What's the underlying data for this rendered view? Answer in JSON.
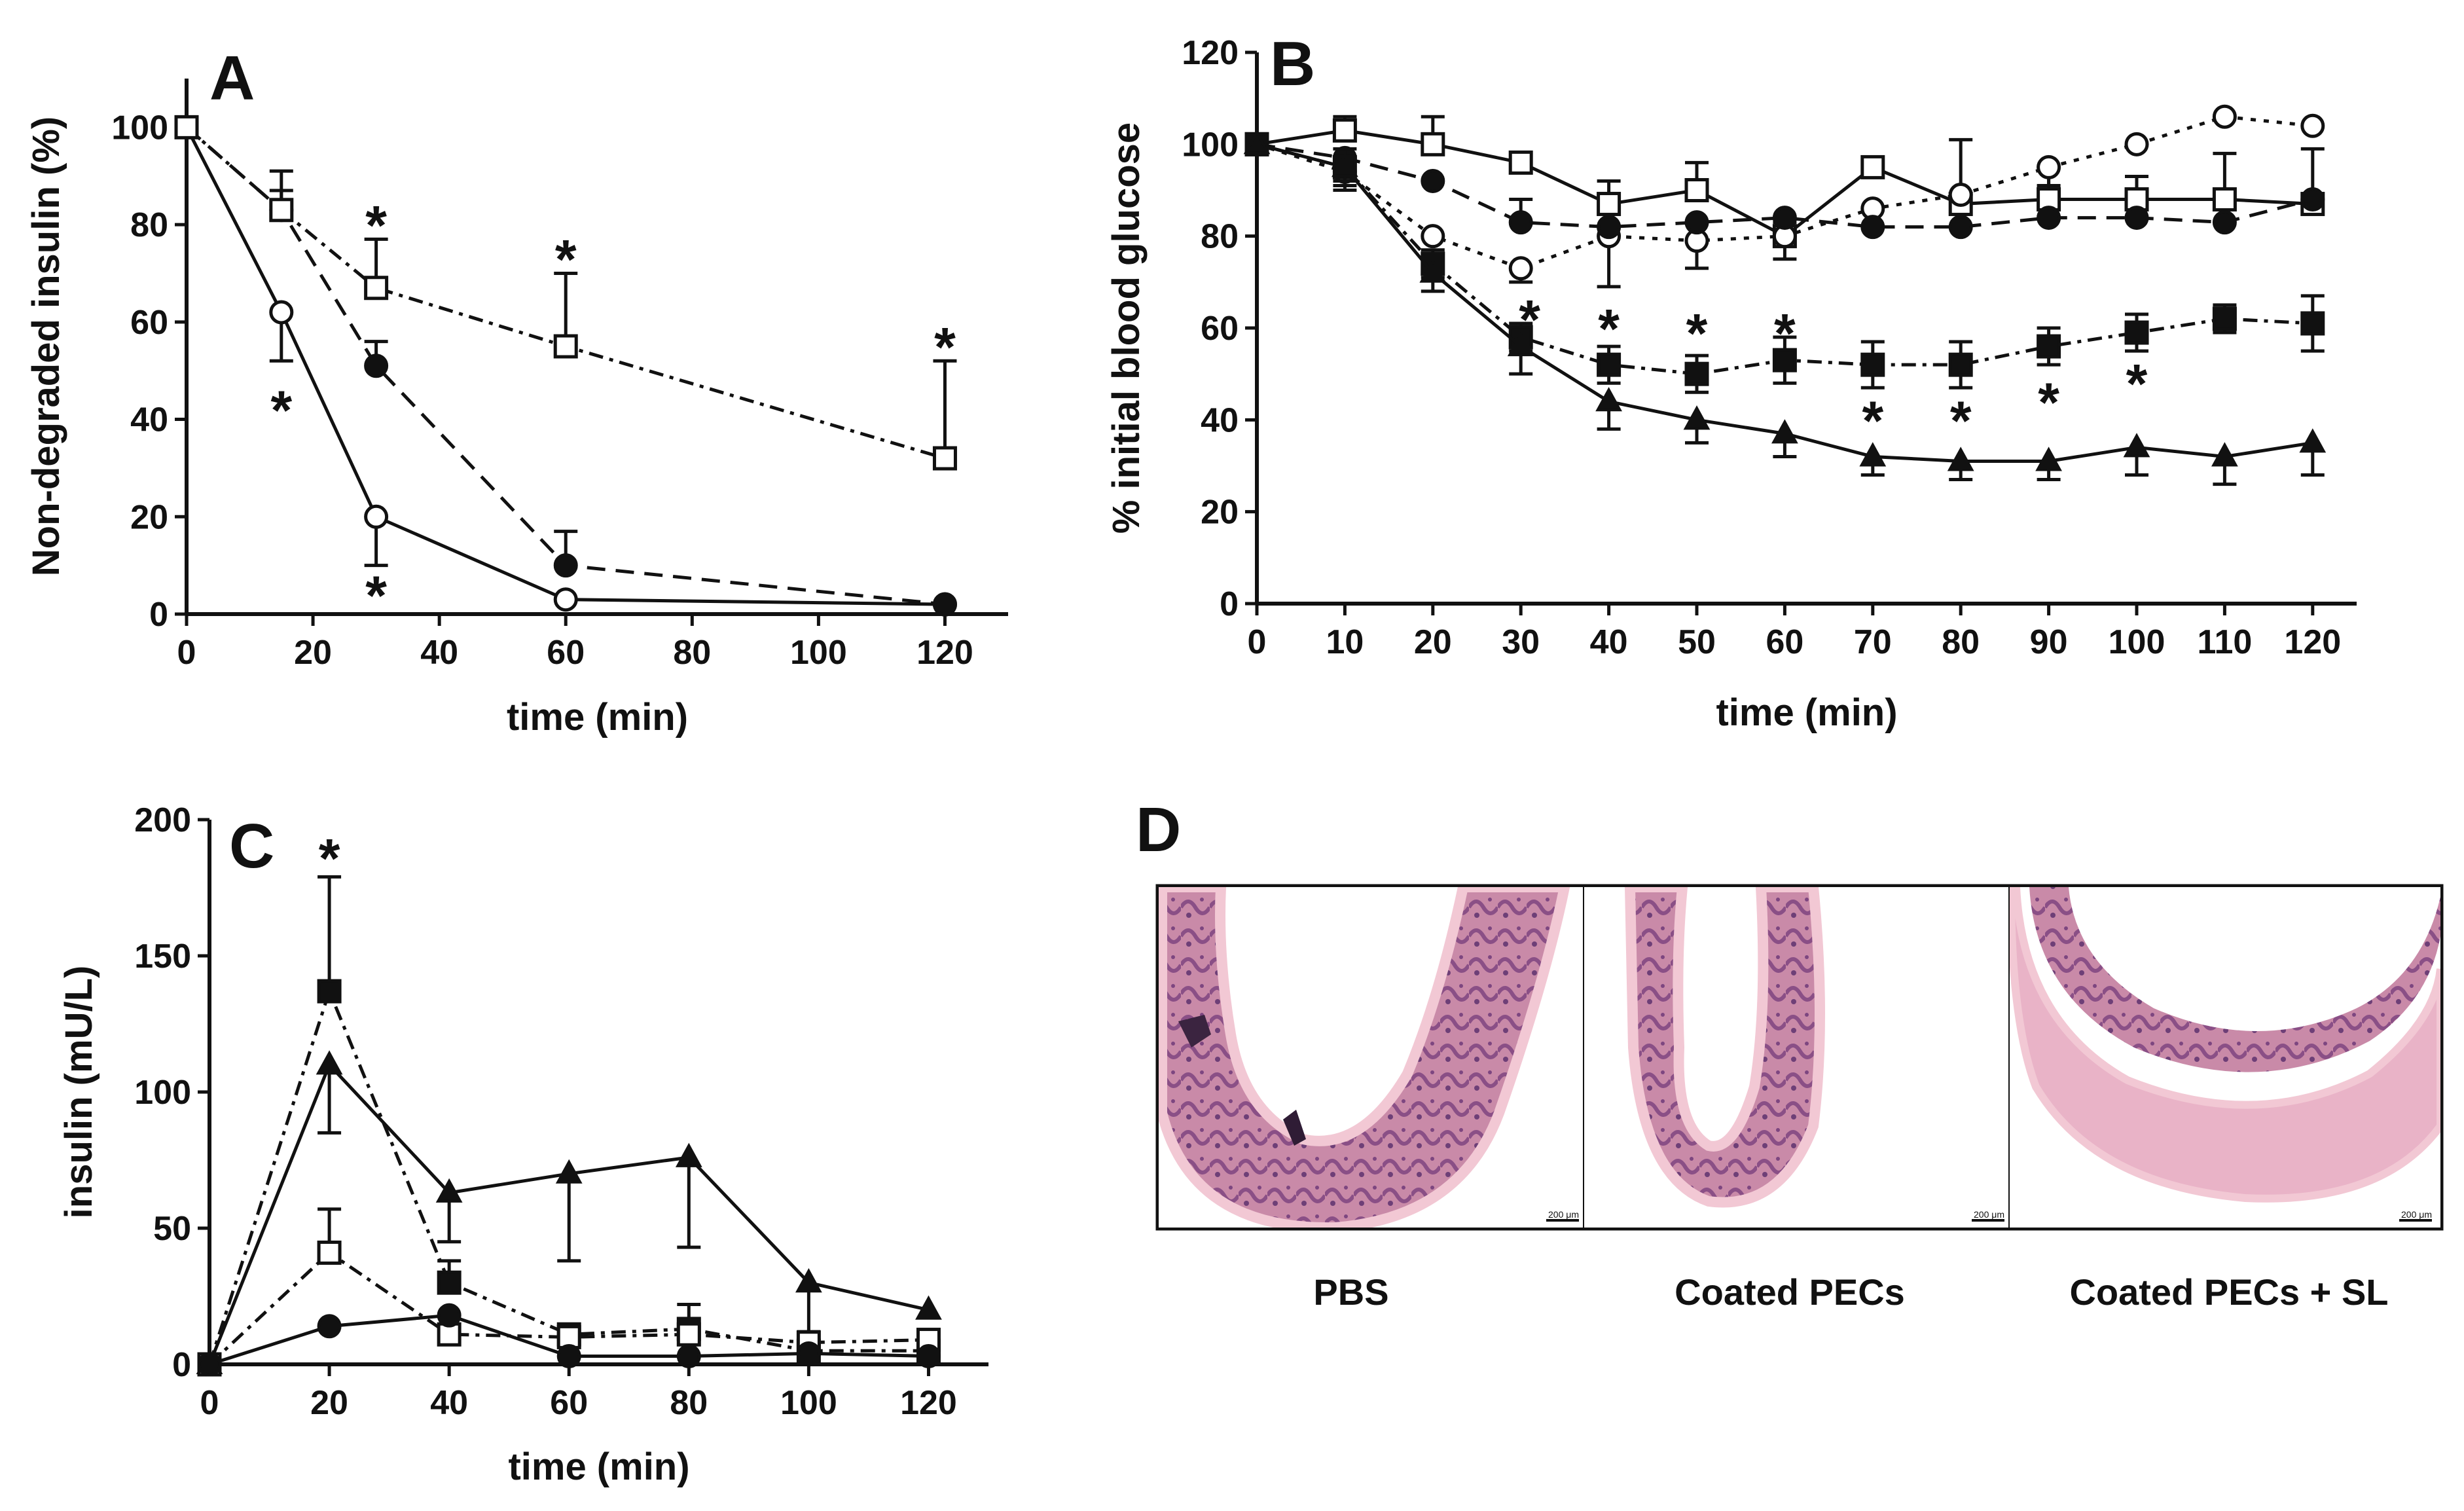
{
  "panel_labels": {
    "A": "A",
    "B": "B",
    "C": "C",
    "D": "D"
  },
  "colors": {
    "ink": "#111111",
    "axis": "#111111",
    "panel_letter_dark": "#2a2a3a",
    "tissue_pink": "#e0a3b8",
    "tissue_purple": "#9a5a8f",
    "tissue_edge": "#f2c8d4"
  },
  "chart_data": [
    {
      "id": "A",
      "type": "line",
      "xlabel": "time (min)",
      "ylabel": "Non-degraded insulin (%)",
      "xlim": [
        0,
        130
      ],
      "ylim": [
        0,
        110
      ],
      "xticks": [
        0,
        20,
        40,
        60,
        80,
        100,
        120
      ],
      "yticks": [
        0,
        20,
        40,
        60,
        80,
        100
      ],
      "series": [
        {
          "name": "open circle",
          "marker": "circle-open",
          "dash": "solid",
          "x": [
            0,
            15,
            30,
            60,
            120
          ],
          "y": [
            100,
            62,
            20,
            3,
            2
          ],
          "err": [
            0,
            10,
            10,
            0,
            0
          ],
          "err_dir": "down"
        },
        {
          "name": "filled circle",
          "marker": "circle-filled",
          "dash": "dashed",
          "x": [
            0,
            15,
            30,
            60,
            120
          ],
          "y": [
            100,
            83,
            51,
            10,
            2
          ],
          "err": [
            0,
            8,
            5,
            7,
            0
          ],
          "err_dir": "up"
        },
        {
          "name": "open square",
          "marker": "square-open",
          "dash": "dashdot",
          "x": [
            0,
            15,
            30,
            60,
            120
          ],
          "y": [
            100,
            83,
            67,
            55,
            32
          ],
          "err": [
            0,
            4,
            10,
            15,
            20
          ],
          "err_dir": "up"
        }
      ],
      "annotations": [
        {
          "text": "*",
          "x": 30,
          "y": 80
        },
        {
          "text": "*",
          "x": 60,
          "y": 73
        },
        {
          "text": "*",
          "x": 120,
          "y": 55
        },
        {
          "text": "*",
          "x": 15,
          "y": 42
        },
        {
          "text": "*",
          "x": 30,
          "y": 4
        }
      ]
    },
    {
      "id": "B",
      "type": "line",
      "xlabel": "time (min)",
      "ylabel": "% initial blood glucose",
      "xlim": [
        0,
        125
      ],
      "ylim": [
        0,
        120
      ],
      "xticks": [
        0,
        10,
        20,
        30,
        40,
        50,
        60,
        70,
        80,
        90,
        100,
        110,
        120
      ],
      "yticks": [
        0,
        20,
        40,
        60,
        80,
        100,
        120
      ],
      "series": [
        {
          "name": "open square",
          "marker": "square-open",
          "dash": "solid",
          "x": [
            0,
            10,
            20,
            30,
            40,
            50,
            60,
            70,
            80,
            90,
            100,
            110,
            120
          ],
          "y": [
            100,
            103,
            100,
            96,
            87,
            90,
            80,
            95,
            87,
            88,
            88,
            88,
            87
          ],
          "err": [
            0,
            3,
            6,
            0,
            5,
            6,
            3,
            2,
            14,
            7,
            5,
            10,
            12
          ],
          "err_dir": "up"
        },
        {
          "name": "open circle",
          "marker": "circle-open",
          "dash": "dotted",
          "x": [
            0,
            10,
            20,
            30,
            40,
            50,
            60,
            70,
            80,
            90,
            100,
            110,
            120
          ],
          "y": [
            100,
            94,
            80,
            73,
            80,
            79,
            80,
            86,
            89,
            95,
            100,
            106,
            104
          ],
          "err": [
            0,
            4,
            0,
            3,
            11,
            6,
            5,
            0,
            0,
            4,
            0,
            0,
            0
          ],
          "err_dir": "down"
        },
        {
          "name": "filled circle",
          "marker": "circle-filled",
          "dash": "dashed",
          "x": [
            0,
            10,
            20,
            30,
            40,
            50,
            60,
            70,
            80,
            90,
            100,
            110,
            120
          ],
          "y": [
            100,
            97,
            92,
            83,
            82,
            83,
            84,
            82,
            82,
            84,
            84,
            83,
            88
          ],
          "err": [
            0,
            0,
            0,
            5,
            0,
            0,
            0,
            0,
            0,
            0,
            0,
            0,
            0
          ],
          "err_dir": "up"
        },
        {
          "name": "filled square",
          "marker": "square-filled",
          "dash": "dashdot",
          "x": [
            0,
            10,
            20,
            30,
            40,
            50,
            60,
            70,
            80,
            90,
            100,
            110,
            120
          ],
          "y": [
            100,
            95,
            74,
            58,
            52,
            50,
            53,
            52,
            52,
            56,
            59,
            62,
            61
          ],
          "err": [
            0,
            4,
            3,
            3,
            4,
            4,
            5,
            5,
            5,
            4,
            4,
            3,
            6
          ],
          "err_dir": "both"
        },
        {
          "name": "filled triangle",
          "marker": "triangle-filled",
          "dash": "solid",
          "x": [
            0,
            10,
            20,
            30,
            40,
            50,
            60,
            70,
            80,
            90,
            100,
            110,
            120
          ],
          "y": [
            100,
            95,
            72,
            56,
            44,
            40,
            37,
            32,
            31,
            31,
            34,
            32,
            35
          ],
          "err": [
            0,
            3,
            4,
            6,
            6,
            5,
            5,
            4,
            4,
            4,
            6,
            6,
            7
          ],
          "err_dir": "down"
        }
      ],
      "annotations": [
        {
          "text": "*",
          "x": 31,
          "y": 62
        },
        {
          "text": "*",
          "x": 40,
          "y": 60
        },
        {
          "text": "*",
          "x": 50,
          "y": 59
        },
        {
          "text": "*",
          "x": 60,
          "y": 59
        },
        {
          "text": "*",
          "x": 70,
          "y": 40
        },
        {
          "text": "*",
          "x": 80,
          "y": 40
        },
        {
          "text": "*",
          "x": 90,
          "y": 44
        },
        {
          "text": "*",
          "x": 100,
          "y": 48
        }
      ]
    },
    {
      "id": "C",
      "type": "line",
      "xlabel": "time (min)",
      "ylabel": "insulin (mU/L)",
      "xlim": [
        0,
        130
      ],
      "ylim": [
        0,
        200
      ],
      "xticks": [
        0,
        20,
        40,
        60,
        80,
        100,
        120
      ],
      "yticks": [
        0,
        50,
        100,
        150,
        200
      ],
      "series": [
        {
          "name": "filled triangle",
          "marker": "triangle-filled",
          "dash": "solid",
          "x": [
            0,
            20,
            40,
            60,
            80,
            100,
            120
          ],
          "y": [
            0,
            110,
            63,
            70,
            76,
            30,
            20
          ],
          "err": [
            0,
            25,
            18,
            32,
            33,
            18,
            0
          ],
          "err_dir": "down"
        },
        {
          "name": "filled square",
          "marker": "square-filled",
          "dash": "dashdot",
          "x": [
            0,
            20,
            40,
            60,
            80,
            100,
            120
          ],
          "y": [
            0,
            137,
            30,
            11,
            13,
            5,
            5
          ],
          "err": [
            0,
            42,
            8,
            0,
            9,
            0,
            0
          ],
          "err_dir": "up"
        },
        {
          "name": "open square",
          "marker": "square-open",
          "dash": "dashdot",
          "x": [
            0,
            20,
            40,
            60,
            80,
            100,
            120
          ],
          "y": [
            0,
            41,
            11,
            10,
            11,
            8,
            9
          ],
          "err": [
            0,
            16,
            0,
            0,
            0,
            0,
            0
          ],
          "err_dir": "up"
        },
        {
          "name": "filled circle",
          "marker": "circle-filled",
          "dash": "solid",
          "x": [
            0,
            20,
            40,
            60,
            80,
            100,
            120
          ],
          "y": [
            0,
            14,
            18,
            3,
            3,
            4,
            3
          ],
          "err": [
            0,
            0,
            0,
            0,
            0,
            0,
            0
          ],
          "err_dir": "up"
        }
      ],
      "annotations": [
        {
          "text": "*",
          "x": 20,
          "y": 186
        }
      ]
    }
  ],
  "panel_d": {
    "captions": [
      "PBS",
      "Coated PECs",
      "Coated PECs + SL"
    ],
    "scale_bar_text": [
      "200 μm",
      "200 μm",
      "200 μm"
    ]
  }
}
